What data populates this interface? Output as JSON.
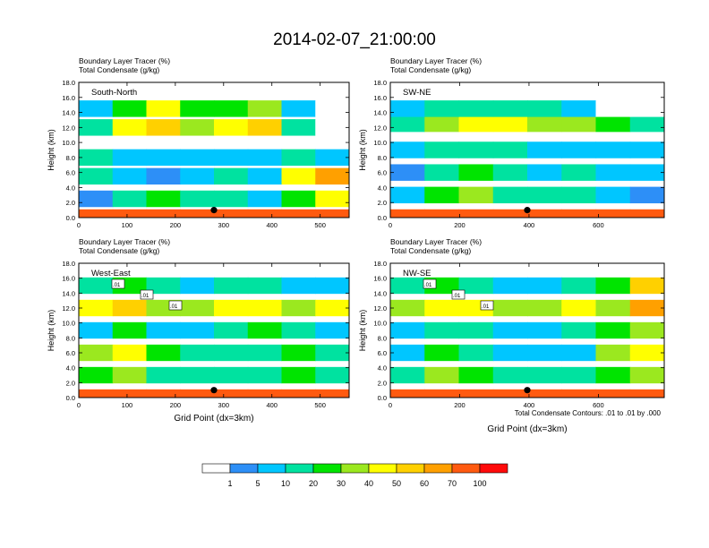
{
  "figure": {
    "title": "2014-02-07_21:00:00",
    "bottom_note": "Total Condensate Contours: .01 to .01 by .000",
    "grid_xlabel": "Grid Point (dx=3km)"
  },
  "chart_data": [
    {
      "type": "heatmap",
      "subtitle_1": "Boundary Layer Tracer    (%)",
      "subtitle_2": "Total Condensate    (g/kg)",
      "panel_label": "South-North",
      "ylabel": "Height (km)",
      "xlabel": "",
      "xlim": [
        0,
        560
      ],
      "ylim": [
        0,
        18
      ],
      "xticks": [
        0,
        100,
        200,
        300,
        400,
        500
      ],
      "yticks": [
        "0.0",
        "2.0",
        "4.0",
        "6.0",
        "8.0",
        "10.0",
        "12.0",
        "14.0",
        "16.0",
        "18.0"
      ],
      "marker": {
        "x": 280,
        "y": 1.0
      },
      "contour_labels": [],
      "levels_by_height": [
        {
          "z": 0.5,
          "values": [
            80,
            80,
            80,
            80,
            80,
            80,
            80,
            80
          ]
        },
        {
          "z": 2.5,
          "values": [
            3,
            15,
            25,
            15,
            10,
            8,
            20,
            40
          ]
        },
        {
          "z": 5.5,
          "values": [
            10,
            5,
            2,
            8,
            10,
            5,
            40,
            60
          ]
        },
        {
          "z": 8,
          "values": [
            10,
            5,
            5,
            5,
            5,
            5,
            10,
            5
          ]
        },
        {
          "z": 12,
          "values": [
            10,
            40,
            50,
            30,
            40,
            50,
            10,
            0
          ]
        },
        {
          "z": 14.5,
          "values": [
            5,
            20,
            40,
            20,
            20,
            30,
            5,
            0
          ]
        }
      ]
    },
    {
      "type": "heatmap",
      "subtitle_1": "Boundary Layer Tracer    (%)",
      "subtitle_2": "Total Condensate    (g/kg)",
      "panel_label": "SW-NE",
      "ylabel": "Height (km)",
      "xlabel": "",
      "xlim": [
        0,
        790
      ],
      "ylim": [
        0,
        18
      ],
      "xticks": [
        0,
        200,
        400,
        600
      ],
      "yticks": [
        "0.0",
        "2.0",
        "4.0",
        "6.0",
        "8.0",
        "10.0",
        "12.0",
        "14.0",
        "16.0",
        "18.0"
      ],
      "marker": {
        "x": 395,
        "y": 1.0
      },
      "contour_labels": [],
      "levels_by_height": [
        {
          "z": 0.5,
          "values": [
            80,
            80,
            80,
            80,
            80,
            80,
            80,
            80
          ]
        },
        {
          "z": 3,
          "values": [
            5,
            20,
            30,
            15,
            10,
            10,
            5,
            2
          ]
        },
        {
          "z": 6,
          "values": [
            3,
            10,
            20,
            10,
            5,
            10,
            5,
            5
          ]
        },
        {
          "z": 9,
          "values": [
            5,
            10,
            15,
            10,
            5,
            5,
            5,
            5
          ]
        },
        {
          "z": 12.5,
          "values": [
            10,
            30,
            40,
            40,
            30,
            30,
            20,
            10
          ]
        },
        {
          "z": 14.5,
          "values": [
            5,
            10,
            15,
            10,
            10,
            5,
            0,
            0
          ]
        }
      ]
    },
    {
      "type": "heatmap",
      "subtitle_1": "Boundary Layer Tracer    (%)",
      "subtitle_2": "Total Condensate    (g/kg)",
      "panel_label": "West-East",
      "ylabel": "Height (km)",
      "xlabel": "Grid Point (dx=3km)",
      "xlim": [
        0,
        560
      ],
      "ylim": [
        0,
        18
      ],
      "xticks": [
        0,
        100,
        200,
        300,
        400,
        500
      ],
      "yticks": [
        "0.0",
        "2.0",
        "4.0",
        "6.0",
        "8.0",
        "10.0",
        "12.0",
        "14.0",
        "16.0",
        "18.0"
      ],
      "marker": {
        "x": 280,
        "y": 1.0
      },
      "contour_labels": [
        ".01",
        ".01",
        ".01"
      ],
      "levels_by_height": [
        {
          "z": 0.5,
          "values": [
            80,
            80,
            80,
            80,
            80,
            80,
            80,
            80
          ]
        },
        {
          "z": 3,
          "values": [
            20,
            30,
            15,
            10,
            10,
            15,
            20,
            10
          ]
        },
        {
          "z": 6,
          "values": [
            30,
            40,
            20,
            10,
            15,
            10,
            20,
            15
          ]
        },
        {
          "z": 9,
          "values": [
            5,
            20,
            5,
            5,
            10,
            20,
            10,
            5
          ]
        },
        {
          "z": 12,
          "values": [
            40,
            50,
            30,
            30,
            40,
            40,
            30,
            40
          ]
        },
        {
          "z": 15,
          "values": [
            10,
            20,
            10,
            5,
            10,
            10,
            5,
            5
          ]
        }
      ]
    },
    {
      "type": "heatmap",
      "subtitle_1": "Boundary Layer Tracer    (%)",
      "subtitle_2": "Total Condensate    (g/kg)",
      "panel_label": "NW-SE",
      "ylabel": "Height (km)",
      "xlabel": "Grid Point (dx=3km)",
      "xlim": [
        0,
        790
      ],
      "ylim": [
        0,
        18
      ],
      "xticks": [
        0,
        200,
        400,
        600
      ],
      "yticks": [
        "0.0",
        "2.0",
        "4.0",
        "6.0",
        "8.0",
        "10.0",
        "12.0",
        "14.0",
        "16.0",
        "18.0"
      ],
      "marker": {
        "x": 395,
        "y": 1.0
      },
      "contour_labels": [
        ".01",
        ".01",
        ".01"
      ],
      "levels_by_height": [
        {
          "z": 0.5,
          "values": [
            80,
            80,
            80,
            80,
            80,
            80,
            80,
            80
          ]
        },
        {
          "z": 3,
          "values": [
            10,
            30,
            20,
            15,
            10,
            10,
            20,
            30
          ]
        },
        {
          "z": 6,
          "values": [
            5,
            20,
            10,
            5,
            5,
            5,
            30,
            40
          ]
        },
        {
          "z": 9,
          "values": [
            5,
            10,
            10,
            5,
            5,
            10,
            20,
            30
          ]
        },
        {
          "z": 12,
          "values": [
            30,
            40,
            40,
            30,
            30,
            40,
            30,
            60
          ]
        },
        {
          "z": 15,
          "values": [
            10,
            20,
            10,
            5,
            5,
            10,
            20,
            50
          ]
        }
      ]
    }
  ],
  "colorbar": {
    "colors": [
      "#ffffff",
      "#2d8ff7",
      "#00c6ff",
      "#00e2a0",
      "#00e400",
      "#9be81f",
      "#ffff00",
      "#ffd000",
      "#ffa000",
      "#ff5a10",
      "#ff0a0a"
    ],
    "labels": [
      "1",
      "5",
      "10",
      "20",
      "30",
      "40",
      "50",
      "60",
      "70",
      "100"
    ]
  }
}
